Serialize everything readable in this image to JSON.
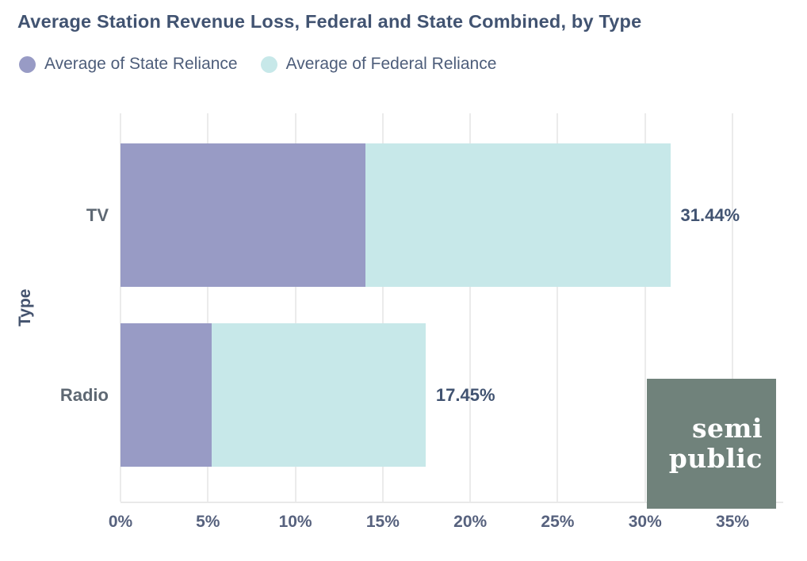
{
  "title": "Average Station Revenue Loss, Federal and State Combined, by Type",
  "chart_data": {
    "type": "bar",
    "subtype": "horizontal_stacked",
    "title": "Average Station Revenue Loss, Federal and State Combined, by Type",
    "categories": [
      "TV",
      "Radio"
    ],
    "series": [
      {
        "name": "Average of State Reliance",
        "color": "#989bc5",
        "values": [
          14.0,
          5.2
        ]
      },
      {
        "name": "Average of Federal Reliance",
        "color": "#c7e8e9",
        "values": [
          17.44,
          12.25
        ]
      }
    ],
    "totals": [
      31.44,
      17.45
    ],
    "total_labels": [
      "31.44%",
      "17.45%"
    ],
    "xlabel": "",
    "ylabel": "Type",
    "xlim": [
      0,
      37.9
    ],
    "xticks": [
      0,
      5,
      10,
      15,
      20,
      25,
      30,
      35
    ],
    "xtick_labels": [
      "0%",
      "5%",
      "10%",
      "15%",
      "20%",
      "25%",
      "30%",
      "35%"
    ],
    "grid": "vertical",
    "legend_position": "top-left"
  },
  "colors": {
    "state_series": "#989bc5",
    "federal_series": "#c7e8e9",
    "title_text": "#415371",
    "gridline": "#ebebeb",
    "logo_background": "#70827b",
    "logo_text": "#ffffff"
  },
  "logo": {
    "lines": [
      "semi",
      "public"
    ]
  }
}
